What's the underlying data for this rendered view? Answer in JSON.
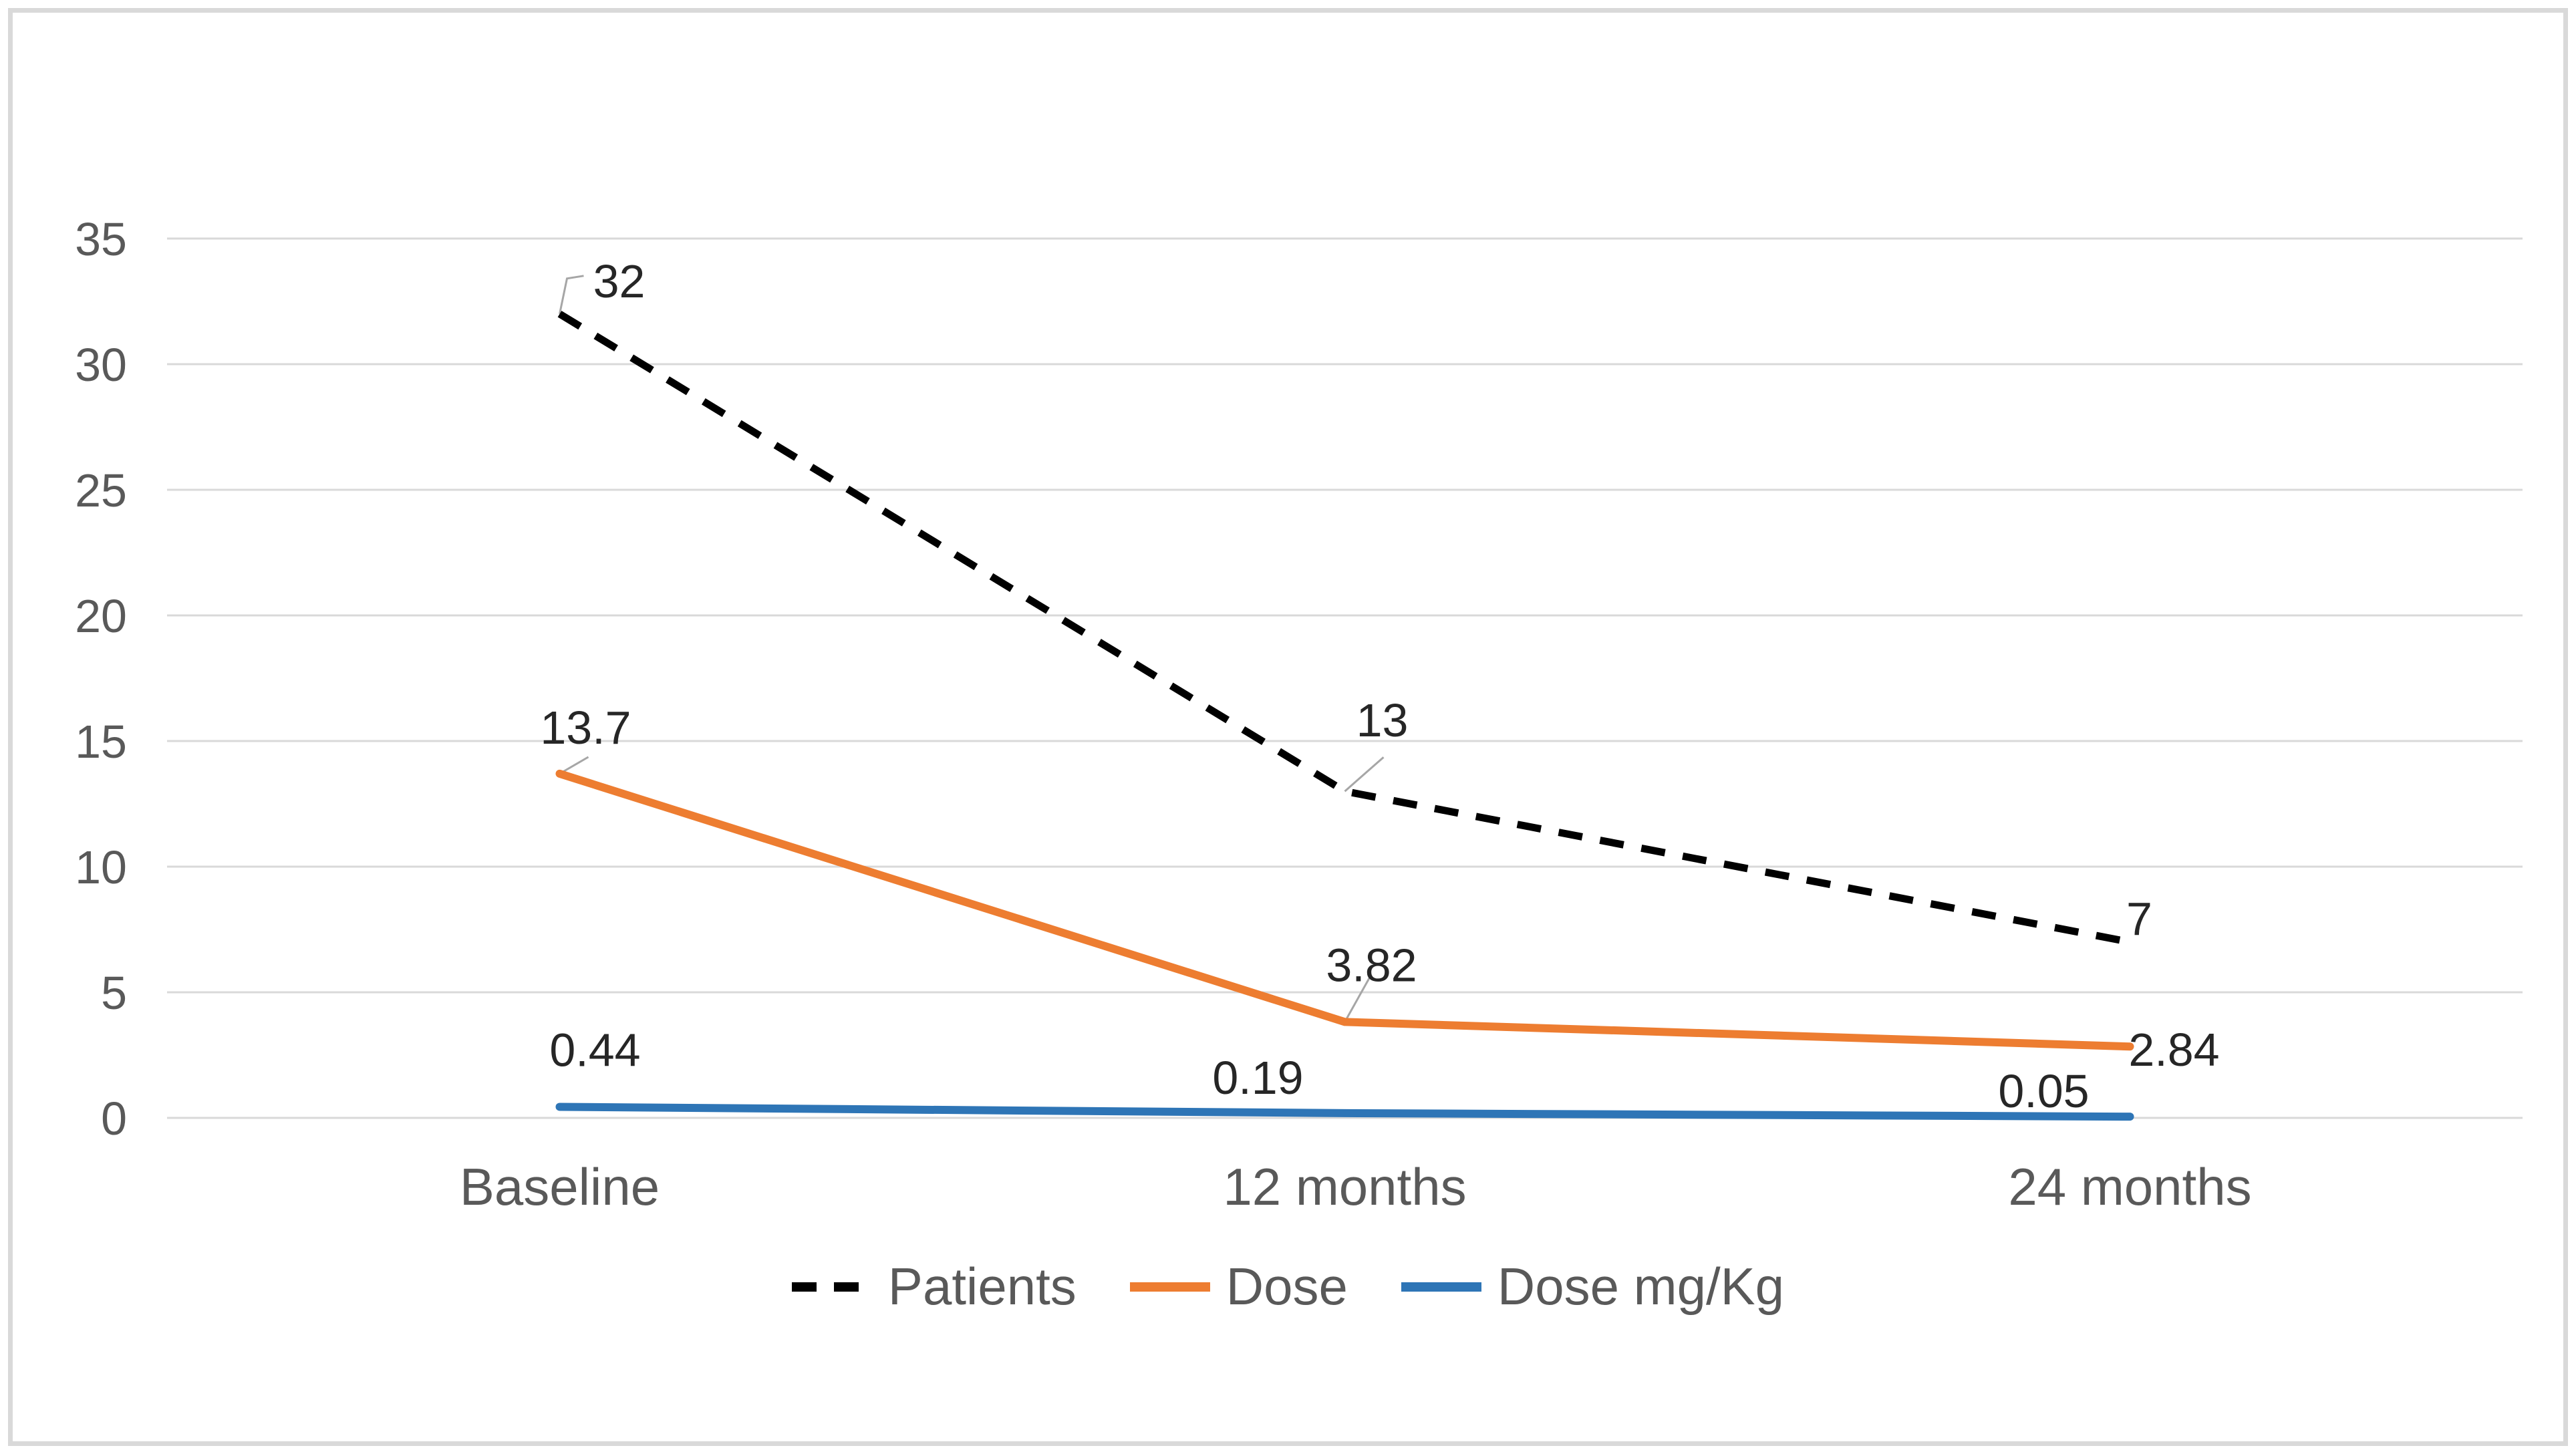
{
  "chart_data": {
    "type": "line",
    "title": "",
    "xlabel": "",
    "ylabel": "",
    "categories": [
      "Baseline",
      "12 months",
      "24 months"
    ],
    "series": [
      {
        "name": "Patients",
        "values": [
          32,
          13,
          7
        ],
        "color": "#000000",
        "style": "dashed"
      },
      {
        "name": "Dose",
        "values": [
          13.7,
          3.82,
          2.84
        ],
        "color": "#ED7D31",
        "style": "solid"
      },
      {
        "name": "Dose mg/Kg",
        "values": [
          0.44,
          0.19,
          0.05
        ],
        "color": "#2E75B6",
        "style": "solid"
      }
    ],
    "data_labels": [
      [
        "32",
        "13",
        "7"
      ],
      [
        "13.7",
        "3.82",
        "2.84"
      ],
      [
        "0.44",
        "0.19",
        "0.05"
      ]
    ],
    "y_ticks": [
      0,
      5,
      10,
      15,
      20,
      25,
      30,
      35
    ],
    "ylim": [
      0,
      35
    ],
    "grid": true,
    "legend": {
      "position": "bottom",
      "entries": [
        "Patients",
        "Dose",
        "Dose mg/Kg"
      ]
    }
  },
  "style_colors": {
    "background": "#FFFFFF",
    "frame_border": "#D9D9D9",
    "gridline": "#D9D9D9",
    "axis_text": "#595959",
    "data_label_text": "#262626",
    "leader_line": "#A6A6A6"
  }
}
